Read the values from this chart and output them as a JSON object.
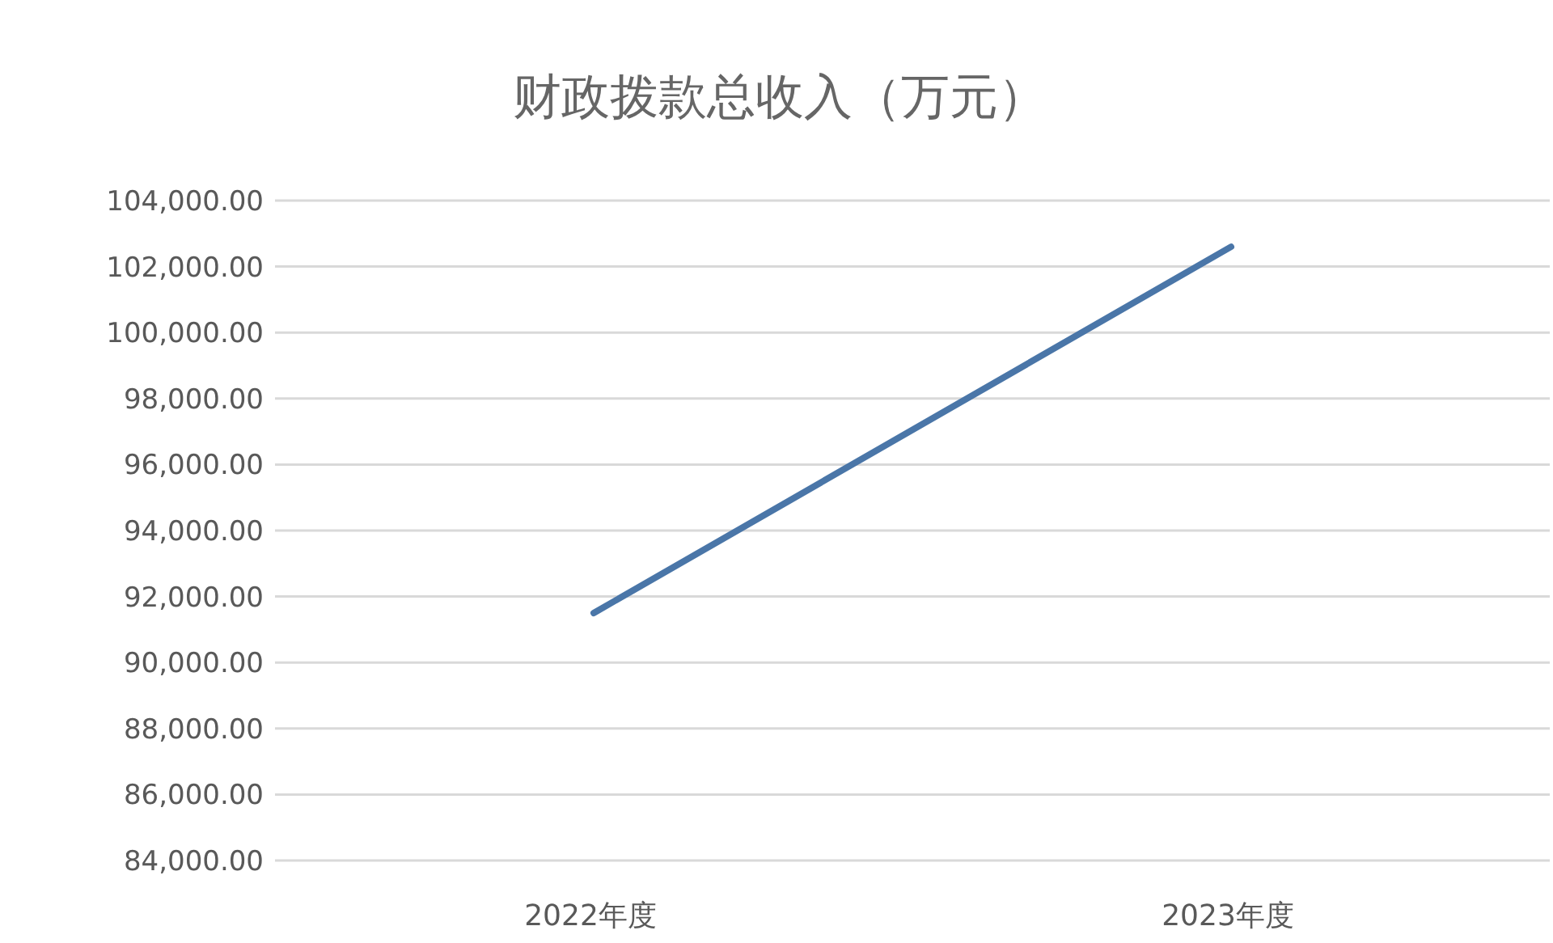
{
  "chart_data": {
    "type": "line",
    "title": "财政拨款总收入（万元）",
    "categories": [
      "2022年度",
      "2023年度"
    ],
    "series": [
      {
        "color": "#4a76a8",
        "values": [
          91500,
          102600
        ]
      }
    ],
    "ylim": [
      84000,
      104000
    ],
    "yticks": [
      {
        "value": 84000,
        "label": "84,000.00"
      },
      {
        "value": 86000,
        "label": "86,000.00"
      },
      {
        "value": 88000,
        "label": "88,000.00"
      },
      {
        "value": 90000,
        "label": "90,000.00"
      },
      {
        "value": 92000,
        "label": "92,000.00"
      },
      {
        "value": 94000,
        "label": "94,000.00"
      },
      {
        "value": 96000,
        "label": "96,000.00"
      },
      {
        "value": 98000,
        "label": "98,000.00"
      },
      {
        "value": 100000,
        "label": "100,000.00"
      },
      {
        "value": 102000,
        "label": "102,000.00"
      },
      {
        "value": 104000,
        "label": "104,000.00"
      }
    ],
    "grid": "y",
    "marker": "none",
    "line_style": "solid"
  }
}
